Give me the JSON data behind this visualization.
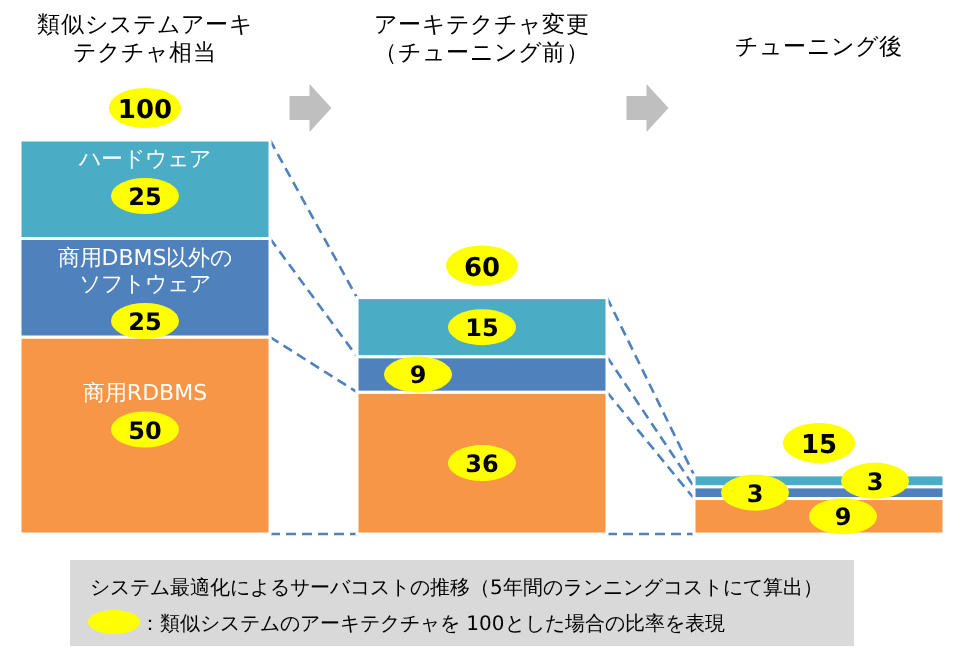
{
  "chart_data": {
    "type": "bar",
    "stacked": true,
    "data_labels": true,
    "categories": [
      "類似システムアーキテクチャ相当",
      "アーキテクチャ変更（チューニング前）",
      "チューニング後"
    ],
    "series": [
      {
        "name": "商用RDBMS",
        "color": "#f79646",
        "values": [
          50,
          36,
          9
        ]
      },
      {
        "name": "商用DBMS以外のソフトウェア",
        "color": "#4f81bd",
        "values": [
          25,
          9,
          3
        ]
      },
      {
        "name": "ハードウェア",
        "color": "#4bacc6",
        "values": [
          25,
          15,
          3
        ]
      }
    ],
    "totals": [
      "100",
      "60",
      "15"
    ],
    "annotations": [
      "システム最適化によるサーバコストの推移（5年間のランニングコストにて算出）",
      "：類似システムのアーキテクチャを 100とした場合の比率を表現"
    ]
  }
}
